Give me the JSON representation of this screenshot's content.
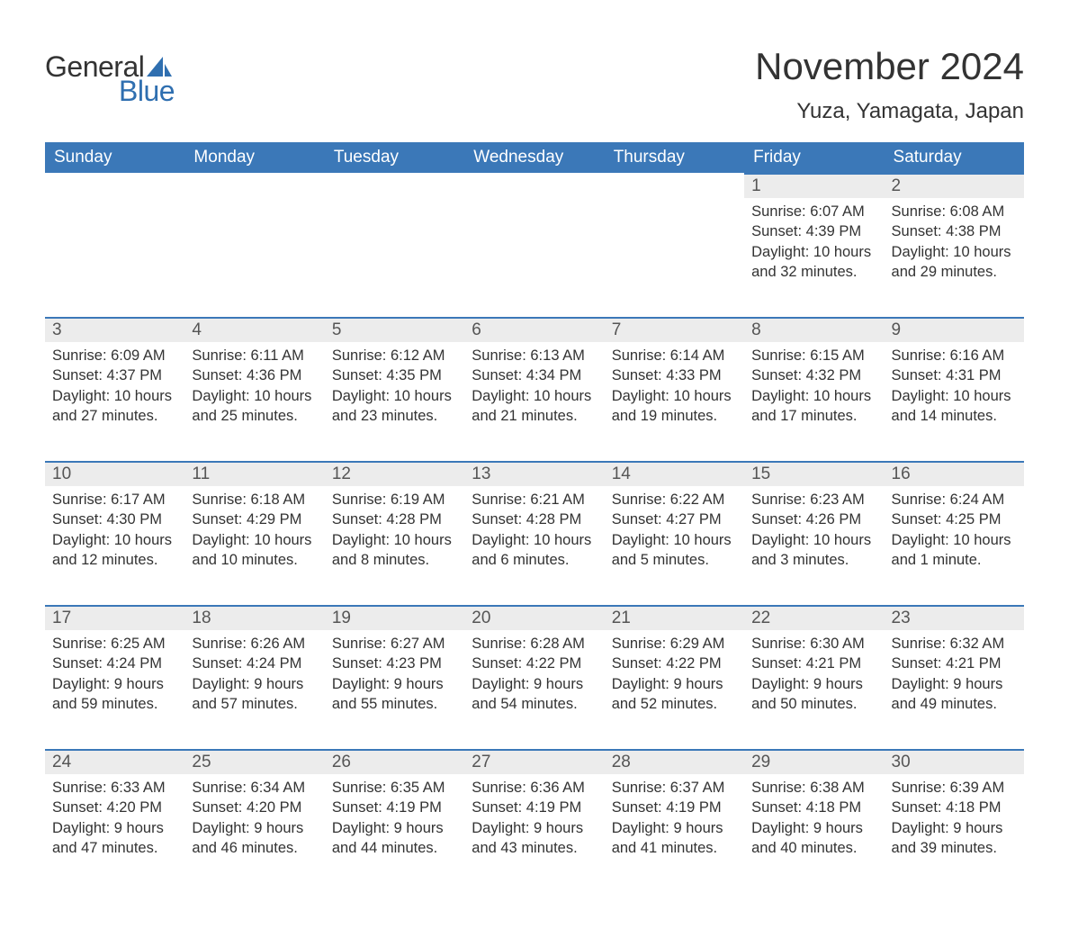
{
  "brand": {
    "word1": "General",
    "word2": "Blue",
    "word1_color": "#333333",
    "word2_color": "#2f6fb0",
    "sail_color": "#2f6fb0"
  },
  "title": "November 2024",
  "location": "Yuza, Yamagata, Japan",
  "colors": {
    "header_bg": "#3b78b8",
    "header_text": "#ffffff",
    "daynum_bg": "#ececec",
    "daynum_border": "#3b78b8",
    "body_text": "#333333",
    "page_bg": "#ffffff"
  },
  "typography": {
    "title_fontsize": 42,
    "location_fontsize": 24,
    "dayheader_fontsize": 19,
    "daynum_fontsize": 19,
    "body_fontsize": 16.5,
    "font_family": "Arial, Helvetica, sans-serif"
  },
  "days_of_week": [
    "Sunday",
    "Monday",
    "Tuesday",
    "Wednesday",
    "Thursday",
    "Friday",
    "Saturday"
  ],
  "weeks": [
    [
      null,
      null,
      null,
      null,
      null,
      {
        "n": "1",
        "sunrise": "Sunrise: 6:07 AM",
        "sunset": "Sunset: 4:39 PM",
        "daylight": "Daylight: 10 hours and 32 minutes."
      },
      {
        "n": "2",
        "sunrise": "Sunrise: 6:08 AM",
        "sunset": "Sunset: 4:38 PM",
        "daylight": "Daylight: 10 hours and 29 minutes."
      }
    ],
    [
      {
        "n": "3",
        "sunrise": "Sunrise: 6:09 AM",
        "sunset": "Sunset: 4:37 PM",
        "daylight": "Daylight: 10 hours and 27 minutes."
      },
      {
        "n": "4",
        "sunrise": "Sunrise: 6:11 AM",
        "sunset": "Sunset: 4:36 PM",
        "daylight": "Daylight: 10 hours and 25 minutes."
      },
      {
        "n": "5",
        "sunrise": "Sunrise: 6:12 AM",
        "sunset": "Sunset: 4:35 PM",
        "daylight": "Daylight: 10 hours and 23 minutes."
      },
      {
        "n": "6",
        "sunrise": "Sunrise: 6:13 AM",
        "sunset": "Sunset: 4:34 PM",
        "daylight": "Daylight: 10 hours and 21 minutes."
      },
      {
        "n": "7",
        "sunrise": "Sunrise: 6:14 AM",
        "sunset": "Sunset: 4:33 PM",
        "daylight": "Daylight: 10 hours and 19 minutes."
      },
      {
        "n": "8",
        "sunrise": "Sunrise: 6:15 AM",
        "sunset": "Sunset: 4:32 PM",
        "daylight": "Daylight: 10 hours and 17 minutes."
      },
      {
        "n": "9",
        "sunrise": "Sunrise: 6:16 AM",
        "sunset": "Sunset: 4:31 PM",
        "daylight": "Daylight: 10 hours and 14 minutes."
      }
    ],
    [
      {
        "n": "10",
        "sunrise": "Sunrise: 6:17 AM",
        "sunset": "Sunset: 4:30 PM",
        "daylight": "Daylight: 10 hours and 12 minutes."
      },
      {
        "n": "11",
        "sunrise": "Sunrise: 6:18 AM",
        "sunset": "Sunset: 4:29 PM",
        "daylight": "Daylight: 10 hours and 10 minutes."
      },
      {
        "n": "12",
        "sunrise": "Sunrise: 6:19 AM",
        "sunset": "Sunset: 4:28 PM",
        "daylight": "Daylight: 10 hours and 8 minutes."
      },
      {
        "n": "13",
        "sunrise": "Sunrise: 6:21 AM",
        "sunset": "Sunset: 4:28 PM",
        "daylight": "Daylight: 10 hours and 6 minutes."
      },
      {
        "n": "14",
        "sunrise": "Sunrise: 6:22 AM",
        "sunset": "Sunset: 4:27 PM",
        "daylight": "Daylight: 10 hours and 5 minutes."
      },
      {
        "n": "15",
        "sunrise": "Sunrise: 6:23 AM",
        "sunset": "Sunset: 4:26 PM",
        "daylight": "Daylight: 10 hours and 3 minutes."
      },
      {
        "n": "16",
        "sunrise": "Sunrise: 6:24 AM",
        "sunset": "Sunset: 4:25 PM",
        "daylight": "Daylight: 10 hours and 1 minute."
      }
    ],
    [
      {
        "n": "17",
        "sunrise": "Sunrise: 6:25 AM",
        "sunset": "Sunset: 4:24 PM",
        "daylight": "Daylight: 9 hours and 59 minutes."
      },
      {
        "n": "18",
        "sunrise": "Sunrise: 6:26 AM",
        "sunset": "Sunset: 4:24 PM",
        "daylight": "Daylight: 9 hours and 57 minutes."
      },
      {
        "n": "19",
        "sunrise": "Sunrise: 6:27 AM",
        "sunset": "Sunset: 4:23 PM",
        "daylight": "Daylight: 9 hours and 55 minutes."
      },
      {
        "n": "20",
        "sunrise": "Sunrise: 6:28 AM",
        "sunset": "Sunset: 4:22 PM",
        "daylight": "Daylight: 9 hours and 54 minutes."
      },
      {
        "n": "21",
        "sunrise": "Sunrise: 6:29 AM",
        "sunset": "Sunset: 4:22 PM",
        "daylight": "Daylight: 9 hours and 52 minutes."
      },
      {
        "n": "22",
        "sunrise": "Sunrise: 6:30 AM",
        "sunset": "Sunset: 4:21 PM",
        "daylight": "Daylight: 9 hours and 50 minutes."
      },
      {
        "n": "23",
        "sunrise": "Sunrise: 6:32 AM",
        "sunset": "Sunset: 4:21 PM",
        "daylight": "Daylight: 9 hours and 49 minutes."
      }
    ],
    [
      {
        "n": "24",
        "sunrise": "Sunrise: 6:33 AM",
        "sunset": "Sunset: 4:20 PM",
        "daylight": "Daylight: 9 hours and 47 minutes."
      },
      {
        "n": "25",
        "sunrise": "Sunrise: 6:34 AM",
        "sunset": "Sunset: 4:20 PM",
        "daylight": "Daylight: 9 hours and 46 minutes."
      },
      {
        "n": "26",
        "sunrise": "Sunrise: 6:35 AM",
        "sunset": "Sunset: 4:19 PM",
        "daylight": "Daylight: 9 hours and 44 minutes."
      },
      {
        "n": "27",
        "sunrise": "Sunrise: 6:36 AM",
        "sunset": "Sunset: 4:19 PM",
        "daylight": "Daylight: 9 hours and 43 minutes."
      },
      {
        "n": "28",
        "sunrise": "Sunrise: 6:37 AM",
        "sunset": "Sunset: 4:19 PM",
        "daylight": "Daylight: 9 hours and 41 minutes."
      },
      {
        "n": "29",
        "sunrise": "Sunrise: 6:38 AM",
        "sunset": "Sunset: 4:18 PM",
        "daylight": "Daylight: 9 hours and 40 minutes."
      },
      {
        "n": "30",
        "sunrise": "Sunrise: 6:39 AM",
        "sunset": "Sunset: 4:18 PM",
        "daylight": "Daylight: 9 hours and 39 minutes."
      }
    ]
  ]
}
